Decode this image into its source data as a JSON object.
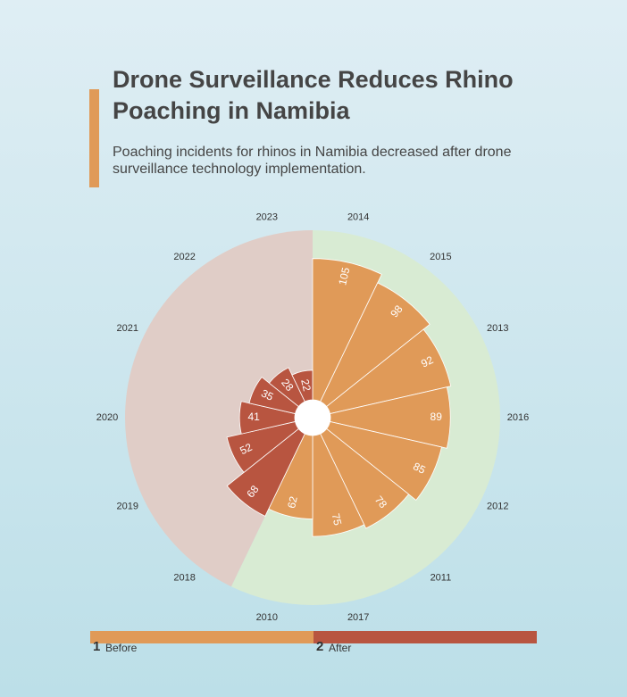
{
  "chart_data": {
    "type": "polar-bar",
    "title": "Drone Surveillance Reduces Rhino Poaching in Namibia",
    "subtitle": "Poaching incidents for rhinos in Namibia decreased after drone surveillance technology implementation.",
    "categories": [
      "2014",
      "2015",
      "2013",
      "2016",
      "2012",
      "2011",
      "2017",
      "2010",
      "2018",
      "2019",
      "2020",
      "2021",
      "2022",
      "2023"
    ],
    "rlim": [
      0,
      126
    ],
    "series": [
      {
        "name": "Before",
        "key": "1",
        "color": "#e09a58",
        "background": "#d8ebd3",
        "values": [
          105,
          98,
          92,
          89,
          85,
          78,
          75,
          62,
          null,
          null,
          null,
          null,
          null,
          null
        ]
      },
      {
        "name": "After",
        "key": "2",
        "color": "#b85540",
        "background": "#e0cdc7",
        "values": [
          null,
          null,
          null,
          null,
          null,
          null,
          null,
          null,
          68,
          52,
          41,
          35,
          28,
          22
        ]
      }
    ]
  }
}
